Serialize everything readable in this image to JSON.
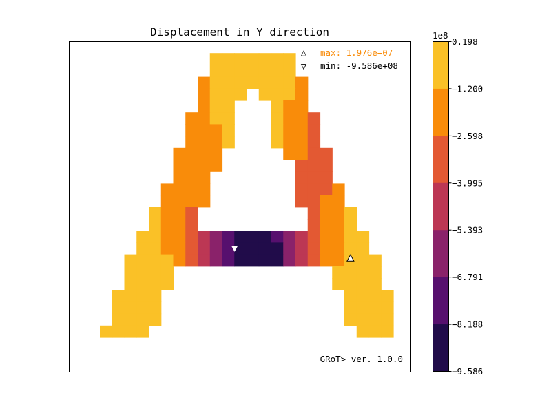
{
  "chart_data": {
    "type": "heatmap",
    "title": "Displacement in Y direction",
    "xlabel": "",
    "ylabel": "",
    "grid": false,
    "nx": 26,
    "ny": 26,
    "cells": [
      [
        0,
        0,
        0,
        0,
        0,
        0,
        0,
        0,
        0,
        0,
        0,
        0,
        0,
        0,
        0,
        0,
        0,
        0,
        0,
        0,
        0,
        0,
        0,
        0,
        0,
        0
      ],
      [
        0,
        0,
        0,
        0,
        0,
        0,
        0,
        0,
        0,
        0,
        0,
        1,
        1,
        1,
        1,
        1,
        1,
        1,
        0,
        0,
        0,
        0,
        0,
        0,
        0,
        0
      ],
      [
        0,
        0,
        0,
        0,
        0,
        0,
        0,
        0,
        0,
        0,
        0,
        1,
        1,
        1,
        1,
        1,
        1,
        1,
        0,
        0,
        0,
        0,
        0,
        0,
        0,
        0
      ],
      [
        0,
        0,
        0,
        0,
        0,
        0,
        0,
        0,
        0,
        0,
        2,
        1,
        1,
        1,
        1,
        1,
        1,
        1,
        2,
        0,
        0,
        0,
        0,
        0,
        0,
        0
      ],
      [
        0,
        0,
        0,
        0,
        0,
        0,
        0,
        0,
        0,
        0,
        2,
        1,
        1,
        1,
        0,
        1,
        1,
        1,
        2,
        0,
        0,
        0,
        0,
        0,
        0,
        0
      ],
      [
        0,
        0,
        0,
        0,
        0,
        0,
        0,
        0,
        0,
        0,
        2,
        1,
        1,
        0,
        0,
        0,
        1,
        2,
        2,
        0,
        0,
        0,
        0,
        0,
        0,
        0
      ],
      [
        0,
        0,
        0,
        0,
        0,
        0,
        0,
        0,
        0,
        2,
        2,
        1,
        1,
        0,
        0,
        0,
        1,
        2,
        2,
        3,
        0,
        0,
        0,
        0,
        0,
        0
      ],
      [
        0,
        0,
        0,
        0,
        0,
        0,
        0,
        0,
        0,
        2,
        2,
        2,
        1,
        0,
        0,
        0,
        1,
        2,
        2,
        3,
        0,
        0,
        0,
        0,
        0,
        0
      ],
      [
        0,
        0,
        0,
        0,
        0,
        0,
        0,
        0,
        0,
        2,
        2,
        2,
        1,
        0,
        0,
        0,
        1,
        2,
        2,
        3,
        0,
        0,
        0,
        0,
        0,
        0
      ],
      [
        0,
        0,
        0,
        0,
        0,
        0,
        0,
        0,
        2,
        2,
        2,
        2,
        0,
        0,
        0,
        0,
        0,
        2,
        2,
        3,
        3,
        0,
        0,
        0,
        0,
        0
      ],
      [
        0,
        0,
        0,
        0,
        0,
        0,
        0,
        0,
        2,
        2,
        2,
        2,
        0,
        0,
        0,
        0,
        0,
        0,
        3,
        3,
        3,
        0,
        0,
        0,
        0,
        0
      ],
      [
        0,
        0,
        0,
        0,
        0,
        0,
        0,
        0,
        2,
        2,
        2,
        0,
        0,
        0,
        0,
        0,
        0,
        0,
        3,
        3,
        3,
        0,
        0,
        0,
        0,
        0
      ],
      [
        0,
        0,
        0,
        0,
        0,
        0,
        0,
        2,
        2,
        2,
        2,
        0,
        0,
        0,
        0,
        0,
        0,
        0,
        3,
        3,
        3,
        2,
        0,
        0,
        0,
        0
      ],
      [
        0,
        0,
        0,
        0,
        0,
        0,
        0,
        2,
        2,
        2,
        2,
        0,
        0,
        0,
        0,
        0,
        0,
        0,
        3,
        3,
        2,
        2,
        0,
        0,
        0,
        0
      ],
      [
        0,
        0,
        0,
        0,
        0,
        0,
        1,
        2,
        2,
        3,
        0,
        0,
        0,
        0,
        0,
        0,
        0,
        0,
        0,
        3,
        2,
        2,
        1,
        0,
        0,
        0
      ],
      [
        0,
        0,
        0,
        0,
        0,
        0,
        1,
        2,
        2,
        3,
        0,
        0,
        0,
        0,
        0,
        0,
        0,
        0,
        0,
        3,
        2,
        2,
        1,
        0,
        0,
        0
      ],
      [
        0,
        0,
        0,
        0,
        0,
        1,
        1,
        2,
        2,
        3,
        4,
        5,
        6,
        7,
        7,
        7,
        6,
        5,
        4,
        3,
        2,
        2,
        1,
        1,
        0,
        0
      ],
      [
        0,
        0,
        0,
        0,
        0,
        1,
        1,
        2,
        2,
        3,
        4,
        5,
        6,
        7,
        7,
        7,
        7,
        5,
        4,
        3,
        2,
        2,
        1,
        1,
        0,
        0
      ],
      [
        0,
        0,
        0,
        0,
        1,
        1,
        1,
        1,
        2,
        3,
        4,
        5,
        6,
        7,
        7,
        7,
        7,
        5,
        4,
        3,
        2,
        2,
        1,
        1,
        1,
        0
      ],
      [
        0,
        0,
        0,
        0,
        1,
        1,
        1,
        1,
        0,
        0,
        0,
        0,
        0,
        0,
        0,
        0,
        0,
        0,
        0,
        0,
        0,
        1,
        1,
        1,
        1,
        0
      ],
      [
        0,
        0,
        0,
        0,
        1,
        1,
        1,
        1,
        0,
        0,
        0,
        0,
        0,
        0,
        0,
        0,
        0,
        0,
        0,
        0,
        0,
        1,
        1,
        1,
        1,
        0
      ],
      [
        0,
        0,
        0,
        1,
        1,
        1,
        1,
        0,
        0,
        0,
        0,
        0,
        0,
        0,
        0,
        0,
        0,
        0,
        0,
        0,
        0,
        0,
        1,
        1,
        1,
        1
      ],
      [
        0,
        0,
        0,
        1,
        1,
        1,
        1,
        0,
        0,
        0,
        0,
        0,
        0,
        0,
        0,
        0,
        0,
        0,
        0,
        0,
        0,
        0,
        1,
        1,
        1,
        1
      ],
      [
        0,
        0,
        0,
        1,
        1,
        1,
        1,
        0,
        0,
        0,
        0,
        0,
        0,
        0,
        0,
        0,
        0,
        0,
        0,
        0,
        0,
        0,
        1,
        1,
        1,
        1
      ],
      [
        0,
        0,
        1,
        1,
        1,
        1,
        0,
        0,
        0,
        0,
        0,
        0,
        0,
        0,
        0,
        0,
        0,
        0,
        0,
        0,
        0,
        0,
        0,
        1,
        1,
        1
      ],
      [
        0,
        0,
        0,
        0,
        0,
        0,
        0,
        0,
        0,
        0,
        0,
        0,
        0,
        0,
        0,
        0,
        0,
        0,
        0,
        0,
        0,
        0,
        0,
        0,
        0,
        0
      ]
    ],
    "levels": [
      {
        "value": 0.198,
        "color": "#fac127"
      },
      {
        "value": -1.2,
        "color": "#f98c0a"
      },
      {
        "value": -2.598,
        "color": "#e35933"
      },
      {
        "value": -3.995,
        "color": "#bc3754"
      },
      {
        "value": -5.393,
        "color": "#8a226a"
      },
      {
        "value": -6.791,
        "color": "#57106e"
      },
      {
        "value": -8.188,
        "color": "#210c4a"
      }
    ],
    "colorbar": {
      "multiplier": "1e8",
      "ticks": [
        "0.198",
        "−1.200",
        "−2.598",
        "−3.995",
        "−5.393",
        "−6.791",
        "−8.188",
        "−9.586"
      ]
    },
    "max_marker": {
      "col": 22,
      "row": 18
    },
    "min_marker": {
      "col": 13,
      "row": 17
    }
  },
  "legend": {
    "max_symbol": "△",
    "max_label": "max:  1.976e+07",
    "min_symbol": "▽",
    "min_label": "min: -9.586e+08",
    "max_color": "#f98c0a",
    "min_color": "#000000"
  },
  "footer": {
    "version": "GRoT> ver. 1.0.0"
  }
}
